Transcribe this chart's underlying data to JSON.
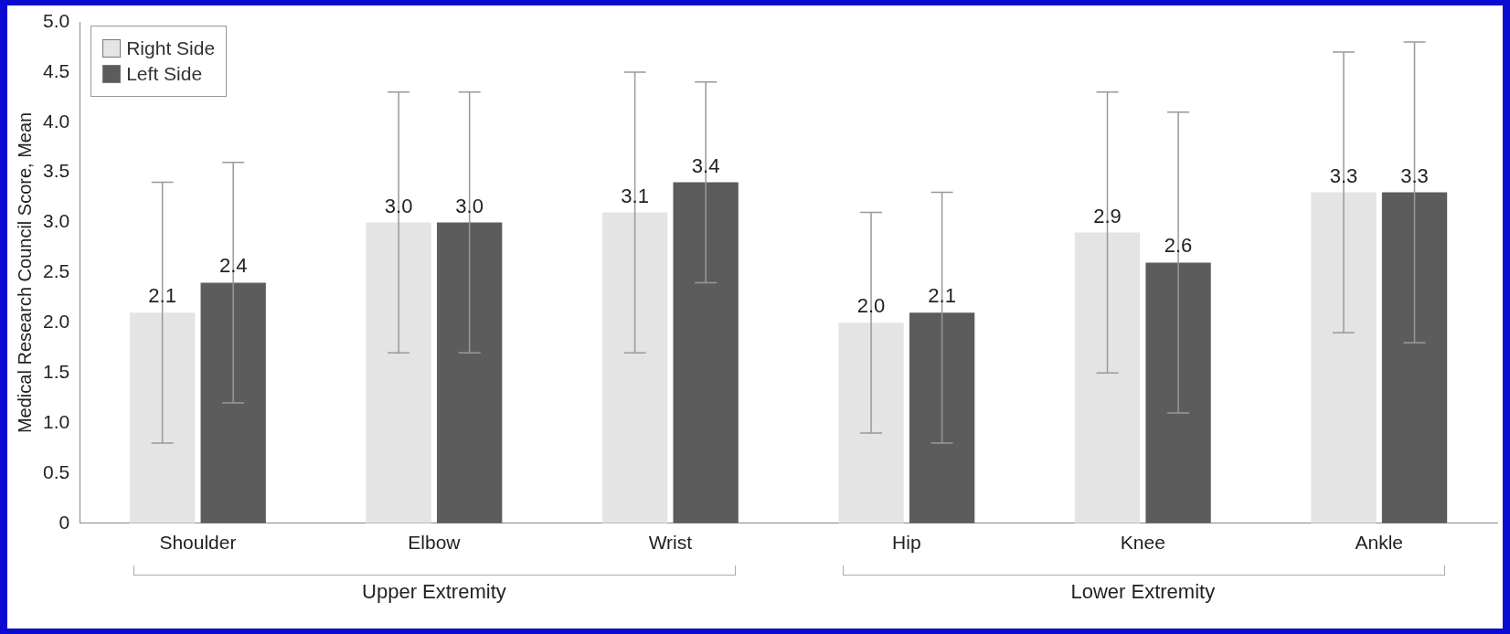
{
  "chart_data": {
    "type": "bar",
    "ylabel": "Medical Research Council Score, Mean",
    "categories": [
      "Shoulder",
      "Elbow",
      "Wrist",
      "Hip",
      "Knee",
      "Ankle"
    ],
    "series": [
      {
        "name": "Right Side",
        "color": "#e4e4e4",
        "values": [
          2.1,
          3.0,
          3.1,
          2.0,
          2.9,
          3.3
        ],
        "value_labels": [
          "2.1",
          "3.0",
          "3.1",
          "2.0",
          "2.9",
          "3.3"
        ],
        "errors": [
          [
            0.8,
            3.4
          ],
          [
            1.7,
            4.3
          ],
          [
            1.7,
            4.5
          ],
          [
            0.9,
            3.1
          ],
          [
            1.5,
            4.3
          ],
          [
            1.9,
            4.7
          ]
        ]
      },
      {
        "name": "Left Side",
        "color": "#5c5c5c",
        "values": [
          2.4,
          3.0,
          3.4,
          2.1,
          2.6,
          3.3
        ],
        "value_labels": [
          "2.4",
          "3.0",
          "3.4",
          "2.1",
          "2.6",
          "3.3"
        ],
        "errors": [
          [
            1.2,
            3.6
          ],
          [
            1.7,
            4.3
          ],
          [
            2.4,
            4.4
          ],
          [
            0.8,
            3.3
          ],
          [
            1.1,
            4.1
          ],
          [
            1.8,
            4.8
          ]
        ]
      }
    ],
    "ylim": [
      0,
      5
    ],
    "yticks": [
      0,
      {
        "value": 0.5,
        "label": "0.5"
      },
      {
        "value": 1,
        "label": "1.0"
      },
      {
        "value": 1.5,
        "label": "1.5"
      },
      {
        "value": 2,
        "label": "2.0"
      },
      {
        "value": 2.5,
        "label": "2.5"
      },
      {
        "value": 3,
        "label": "3.0"
      },
      {
        "value": 3.5,
        "label": "3.5"
      },
      {
        "value": 4,
        "label": "4.0"
      },
      {
        "value": 4.5,
        "label": "4.5"
      },
      {
        "value": 5,
        "label": "5.0"
      }
    ],
    "grid": false,
    "legend": "top left",
    "annotations": [
      "Upper Extremity",
      "Lower Extremity"
    ]
  }
}
